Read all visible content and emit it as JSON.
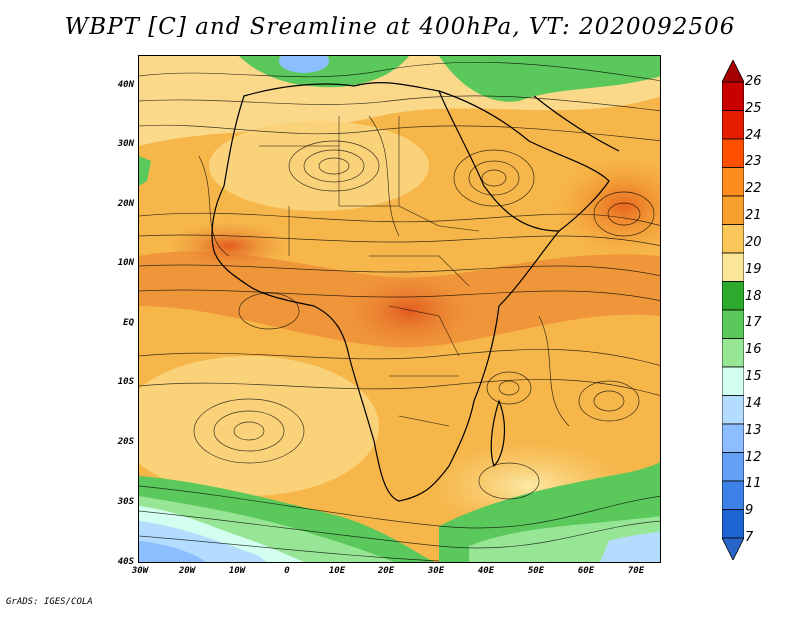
{
  "title": "WBPT [C] and Sreamline at 400hPa, VT: 2020092506",
  "footer": "GrADS: IGES/COLA",
  "lat_labels": [
    "40N",
    "30N",
    "20N",
    "10N",
    "EQ",
    "10S",
    "20S",
    "30S",
    "40S"
  ],
  "lon_labels": [
    "30W",
    "20W",
    "10W",
    "0",
    "10E",
    "20E",
    "30E",
    "40E",
    "50E",
    "60E",
    "70E"
  ],
  "colorbar": {
    "labels": [
      "26",
      "25",
      "24",
      "23",
      "22",
      "21",
      "20",
      "19",
      "18",
      "17",
      "16",
      "15",
      "14",
      "13",
      "12",
      "11",
      "9",
      "7"
    ],
    "colors": [
      "#a50000",
      "#c80000",
      "#e61e00",
      "#ff5000",
      "#ff8c1e",
      "#f5a02d",
      "#fac85a",
      "#fae696",
      "#2daa2d",
      "#5ac85a",
      "#96e696",
      "#d2fff0",
      "#b4dcff",
      "#8cbeff",
      "#64a0f5",
      "#3c82e6",
      "#1e64d2",
      "#2864c8"
    ]
  },
  "map": {
    "region": "Africa and surrounding oceans",
    "lon_range": [
      -30,
      75
    ],
    "lat_range": [
      -40,
      45
    ]
  }
}
